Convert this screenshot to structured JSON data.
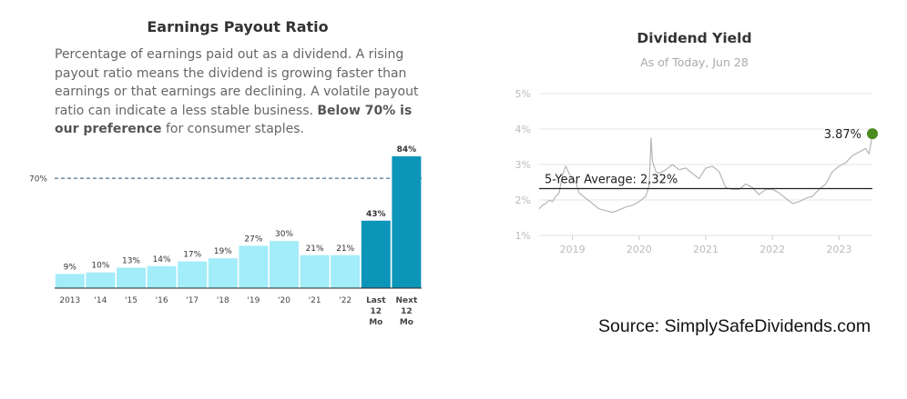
{
  "chart_data": [
    {
      "type": "bar",
      "title": "Earnings Payout Ratio",
      "description_html": "Percentage of earnings paid out as a dividend. A rising payout ratio means the dividend is growing faster than earnings or that earnings are declining. A volatile payout ratio can indicate a less stable business. <b>Below 70% is our preference</b> for consumer staples.",
      "categories": [
        "2013",
        "'14",
        "'15",
        "'16",
        "'17",
        "'18",
        "'19",
        "'20",
        "'21",
        "'22",
        "Last 12 Mo",
        "Next 12 Mo"
      ],
      "category_lines": [
        [
          "2013"
        ],
        [
          "'14"
        ],
        [
          "'15"
        ],
        [
          "'16"
        ],
        [
          "'17"
        ],
        [
          "'18"
        ],
        [
          "'19"
        ],
        [
          "'20"
        ],
        [
          "'21"
        ],
        [
          "'22"
        ],
        [
          "Last",
          "12",
          "Mo"
        ],
        [
          "Next",
          "12",
          "Mo"
        ]
      ],
      "values": [
        9,
        10,
        13,
        14,
        17,
        19,
        27,
        30,
        21,
        21,
        43,
        84
      ],
      "value_labels": [
        "9%",
        "10%",
        "13%",
        "14%",
        "17%",
        "19%",
        "27%",
        "30%",
        "21%",
        "21%",
        "43%",
        "84%"
      ],
      "highlight_categories": [
        "Last 12 Mo",
        "Next 12 Mo"
      ],
      "reference_line": {
        "value": 70,
        "label": "70%"
      },
      "ylim": [
        0,
        90
      ],
      "colors": {
        "bar": "#a3ecf9",
        "highlight": "#0b95b8",
        "reference": "#1c4f7a"
      }
    },
    {
      "type": "line",
      "title": "Dividend Yield",
      "subtitle": "As of Today, Jun 28",
      "y_ticks": [
        "5%",
        "4%",
        "3%",
        "2%",
        "1%"
      ],
      "y_tick_values": [
        5,
        4,
        3,
        2,
        1
      ],
      "x_ticks": [
        "2019",
        "2020",
        "2021",
        "2022",
        "2023"
      ],
      "x_tick_values": [
        2019.0,
        2020.0,
        2021.0,
        2022.0,
        2023.0
      ],
      "ylim": [
        1,
        5
      ],
      "xlim": [
        2018.5,
        2023.5
      ],
      "average": {
        "value": 2.32,
        "label": "5-Year Average: 2,32%"
      },
      "current": {
        "value": 3.87,
        "label": "3.87%"
      },
      "series": [
        {
          "x": [
            2018.5,
            2018.55,
            2018.6,
            2018.65,
            2018.7,
            2018.75,
            2018.8,
            2018.85,
            2018.9,
            2018.95,
            2019.0,
            2019.05,
            2019.1,
            2019.2,
            2019.3,
            2019.4,
            2019.5,
            2019.6,
            2019.7,
            2019.8,
            2019.9,
            2020.0,
            2020.1,
            2020.15,
            2020.18,
            2020.2,
            2020.25,
            2020.3,
            2020.4,
            2020.5,
            2020.6,
            2020.7,
            2020.8,
            2020.9,
            2021.0,
            2021.1,
            2021.2,
            2021.3,
            2021.4,
            2021.5,
            2021.6,
            2021.7,
            2021.8,
            2021.9,
            2022.0,
            2022.1,
            2022.2,
            2022.3,
            2022.4,
            2022.5,
            2022.6,
            2022.7,
            2022.8,
            2022.9,
            2023.0,
            2023.1,
            2023.2,
            2023.3,
            2023.4,
            2023.45,
            2023.48,
            2023.5
          ],
          "y": [
            1.75,
            1.85,
            1.9,
            2.0,
            1.95,
            2.1,
            2.2,
            2.7,
            2.95,
            2.75,
            2.6,
            2.5,
            2.2,
            2.05,
            1.9,
            1.75,
            1.7,
            1.65,
            1.72,
            1.8,
            1.85,
            1.95,
            2.1,
            2.4,
            3.75,
            3.1,
            2.8,
            2.75,
            2.85,
            3.0,
            2.85,
            2.9,
            2.75,
            2.6,
            2.9,
            2.95,
            2.8,
            2.35,
            2.3,
            2.3,
            2.45,
            2.35,
            2.15,
            2.3,
            2.3,
            2.2,
            2.05,
            1.9,
            1.95,
            2.05,
            2.1,
            2.3,
            2.45,
            2.8,
            2.95,
            3.05,
            3.25,
            3.35,
            3.45,
            3.3,
            3.6,
            3.87
          ],
          "color": "#b5b5b5"
        }
      ],
      "colors": {
        "average_line": "#222222",
        "marker": "#4b8a1f",
        "grid": "#e6e6e6",
        "axis_text": "#bbbbbb"
      }
    }
  ],
  "source": "Source: SimplySafeDividends.com"
}
